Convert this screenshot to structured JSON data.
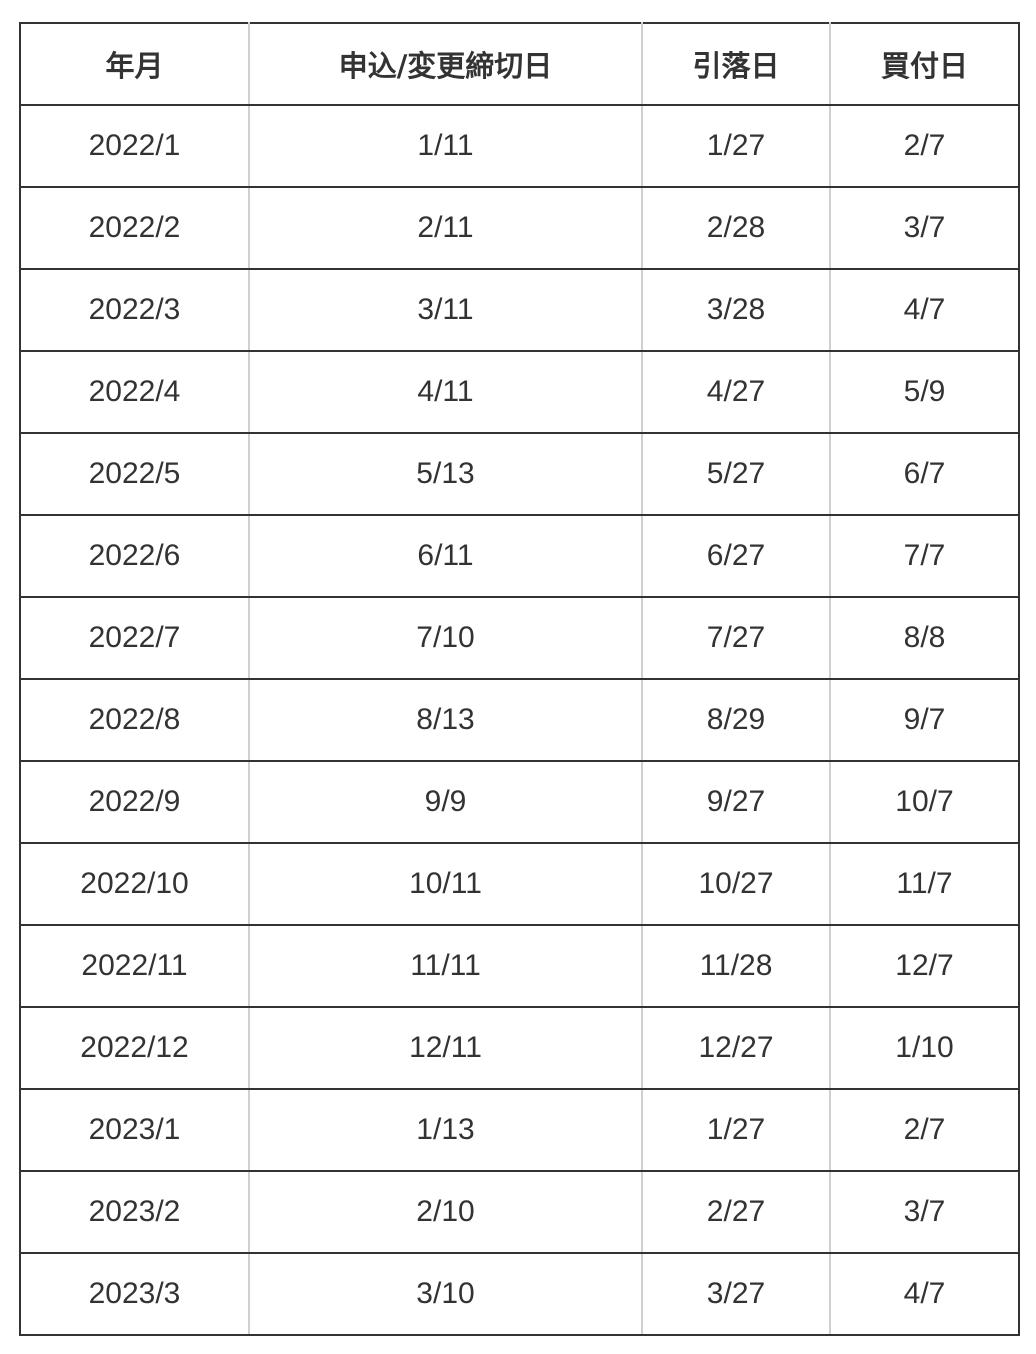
{
  "table": {
    "headers": [
      "年月",
      "申込/変更締切日",
      "引落日",
      "買付日"
    ],
    "rows": [
      [
        "2022/1",
        "1/11",
        "1/27",
        "2/7"
      ],
      [
        "2022/2",
        "2/11",
        "2/28",
        "3/7"
      ],
      [
        "2022/3",
        "3/11",
        "3/28",
        "4/7"
      ],
      [
        "2022/4",
        "4/11",
        "4/27",
        "5/9"
      ],
      [
        "2022/5",
        "5/13",
        "5/27",
        "6/7"
      ],
      [
        "2022/6",
        "6/11",
        "6/27",
        "7/7"
      ],
      [
        "2022/7",
        "7/10",
        "7/27",
        "8/8"
      ],
      [
        "2022/8",
        "8/13",
        "8/29",
        "9/7"
      ],
      [
        "2022/9",
        "9/9",
        "9/27",
        "10/7"
      ],
      [
        "2022/10",
        "10/11",
        "10/27",
        "11/7"
      ],
      [
        "2022/11",
        "11/11",
        "11/28",
        "12/7"
      ],
      [
        "2022/12",
        "12/11",
        "12/27",
        "1/10"
      ],
      [
        "2023/1",
        "1/13",
        "1/27",
        "2/7"
      ],
      [
        "2023/2",
        "2/10",
        "2/27",
        "3/7"
      ],
      [
        "2023/3",
        "3/10",
        "3/27",
        "4/7"
      ]
    ]
  }
}
